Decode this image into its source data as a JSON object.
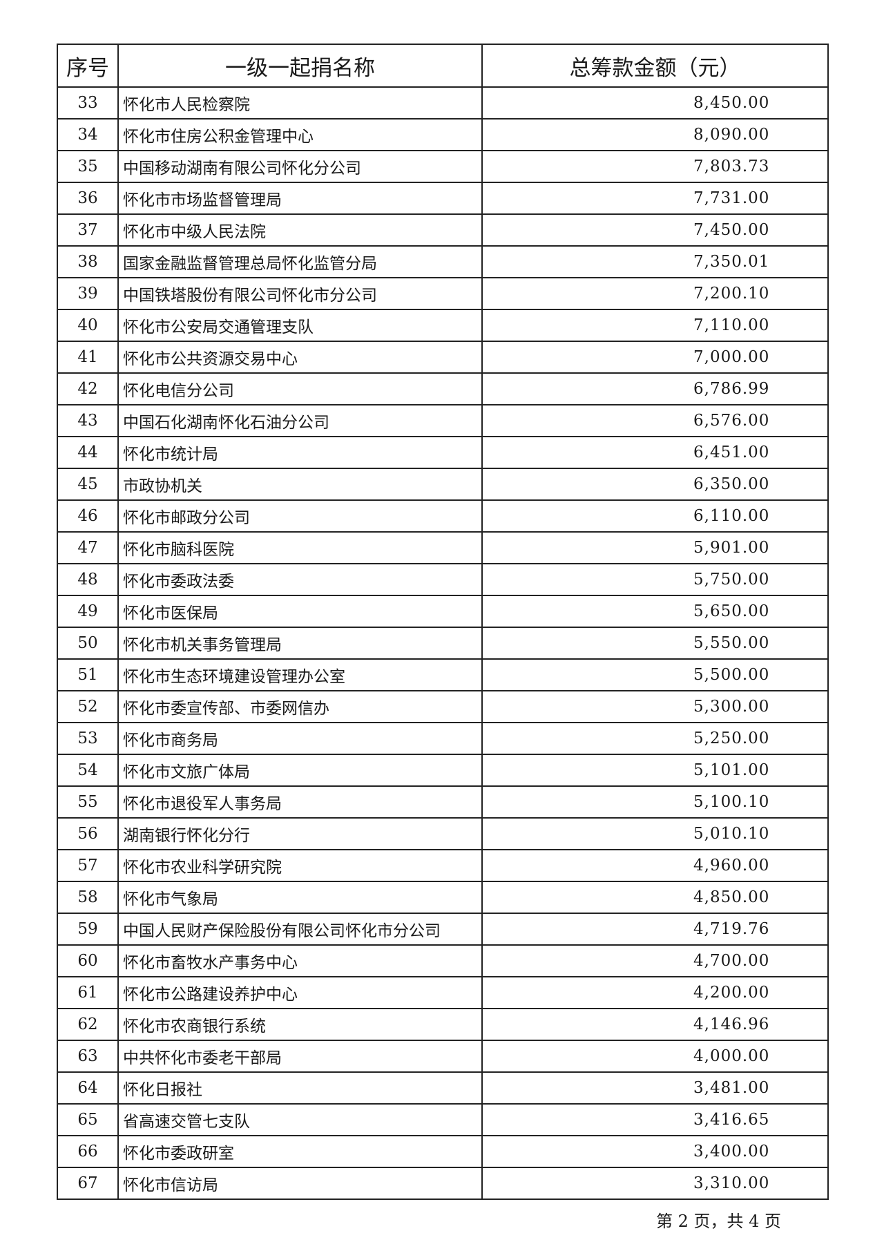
{
  "table": {
    "headers": [
      "序号",
      "一级一起捐名称",
      "总筹款金额（元）"
    ],
    "rows": [
      [
        "33",
        "怀化市人民检察院",
        "8,450.00"
      ],
      [
        "34",
        "怀化市住房公积金管理中心",
        "8,090.00"
      ],
      [
        "35",
        "中国移动湖南有限公司怀化分公司",
        "7,803.73"
      ],
      [
        "36",
        "怀化市市场监督管理局",
        "7,731.00"
      ],
      [
        "37",
        "怀化市中级人民法院",
        "7,450.00"
      ],
      [
        "38",
        "国家金融监督管理总局怀化监管分局",
        "7,350.01"
      ],
      [
        "39",
        "中国铁塔股份有限公司怀化市分公司",
        "7,200.10"
      ],
      [
        "40",
        "怀化市公安局交通管理支队",
        "7,110.00"
      ],
      [
        "41",
        "怀化市公共资源交易中心",
        "7,000.00"
      ],
      [
        "42",
        "怀化电信分公司",
        "6,786.99"
      ],
      [
        "43",
        "中国石化湖南怀化石油分公司",
        "6,576.00"
      ],
      [
        "44",
        "怀化市统计局",
        "6,451.00"
      ],
      [
        "45",
        "市政协机关",
        "6,350.00"
      ],
      [
        "46",
        "怀化市邮政分公司",
        "6,110.00"
      ],
      [
        "47",
        "怀化市脑科医院",
        "5,901.00"
      ],
      [
        "48",
        "怀化市委政法委",
        "5,750.00"
      ],
      [
        "49",
        "怀化市医保局",
        "5,650.00"
      ],
      [
        "50",
        "怀化市机关事务管理局",
        "5,550.00"
      ],
      [
        "51",
        "怀化市生态环境建设管理办公室",
        "5,500.00"
      ],
      [
        "52",
        "怀化市委宣传部、市委网信办",
        "5,300.00"
      ],
      [
        "53",
        "怀化市商务局",
        "5,250.00"
      ],
      [
        "54",
        "怀化市文旅广体局",
        "5,101.00"
      ],
      [
        "55",
        "怀化市退役军人事务局",
        "5,100.10"
      ],
      [
        "56",
        "湖南银行怀化分行",
        "5,010.10"
      ],
      [
        "57",
        "怀化市农业科学研究院",
        "4,960.00"
      ],
      [
        "58",
        "怀化市气象局",
        "4,850.00"
      ],
      [
        "59",
        "中国人民财产保险股份有限公司怀化市分公司",
        "4,719.76"
      ],
      [
        "60",
        "怀化市畜牧水产事务中心",
        "4,700.00"
      ],
      [
        "61",
        "怀化市公路建设养护中心",
        "4,200.00"
      ],
      [
        "62",
        "怀化市农商银行系统",
        "4,146.96"
      ],
      [
        "63",
        "中共怀化市委老干部局",
        "4,000.00"
      ],
      [
        "64",
        "怀化日报社",
        "3,481.00"
      ],
      [
        "65",
        "省高速交管七支队",
        "3,416.65"
      ],
      [
        "66",
        "怀化市委政研室",
        "3,400.00"
      ],
      [
        "67",
        "怀化市信访局",
        "3,310.00"
      ]
    ]
  },
  "footer": {
    "page_info": "第 2 页，共 4 页"
  }
}
